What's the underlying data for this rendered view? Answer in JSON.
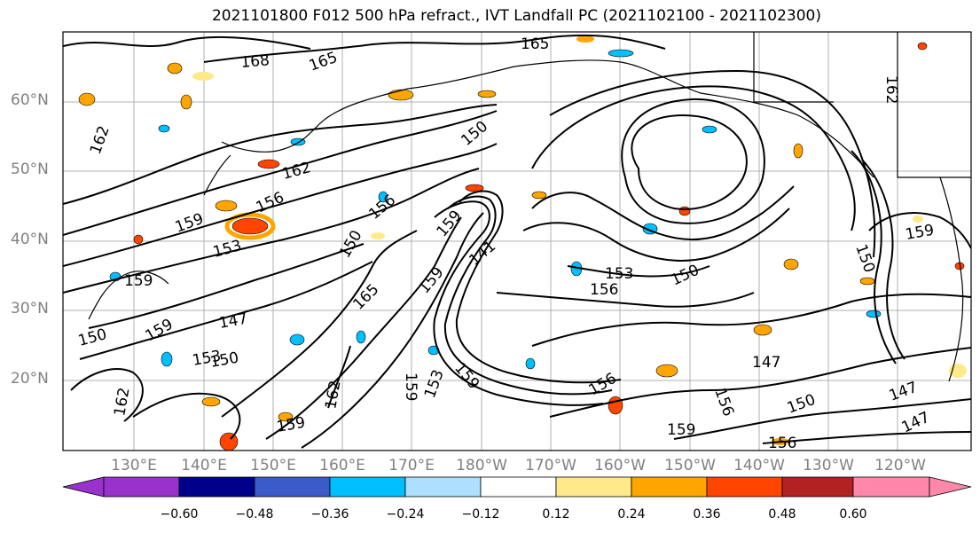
{
  "title": "2021101800 F012 500 hPa refract., IVT Landfall PC (2021102100 - 2021102300)",
  "lat_labels": [
    "60°N",
    "50°N",
    "40°N",
    "30°N",
    "20°N"
  ],
  "lon_labels": [
    "130°E",
    "140°E",
    "150°E",
    "160°E",
    "170°E",
    "180°W",
    "170°W",
    "160°W",
    "150°W",
    "140°W",
    "130°W",
    "120°W"
  ],
  "colorbar": {
    "ticks": [
      "−0.60",
      "−0.48",
      "−0.36",
      "−0.24",
      "−0.12",
      "0.12",
      "0.24",
      "0.36",
      "0.48",
      "0.60"
    ],
    "colors": [
      "#9932CC",
      "#00008B",
      "#3A5BC9",
      "#00BFFF",
      "#ADDFFF",
      "#FFFFFF",
      "#FFE98A",
      "#FFA500",
      "#FF4500",
      "#B22222",
      "#FF88AA"
    ]
  },
  "contour_labels": [
    "165",
    "168",
    "165",
    "162",
    "162",
    "162",
    "156",
    "159",
    "153",
    "156",
    "150",
    "159",
    "165",
    "159",
    "147",
    "150",
    "159",
    "153",
    "150",
    "162",
    "159",
    "159",
    "159",
    "162",
    "153",
    "156",
    "159",
    "153",
    "150",
    "159",
    "150",
    "147",
    "156",
    "150",
    "147",
    "147",
    "159",
    "156",
    "156",
    "150",
    "141"
  ],
  "legend_colors": {
    "negative": "#00BFFF",
    "positive": "#FFA500"
  }
}
